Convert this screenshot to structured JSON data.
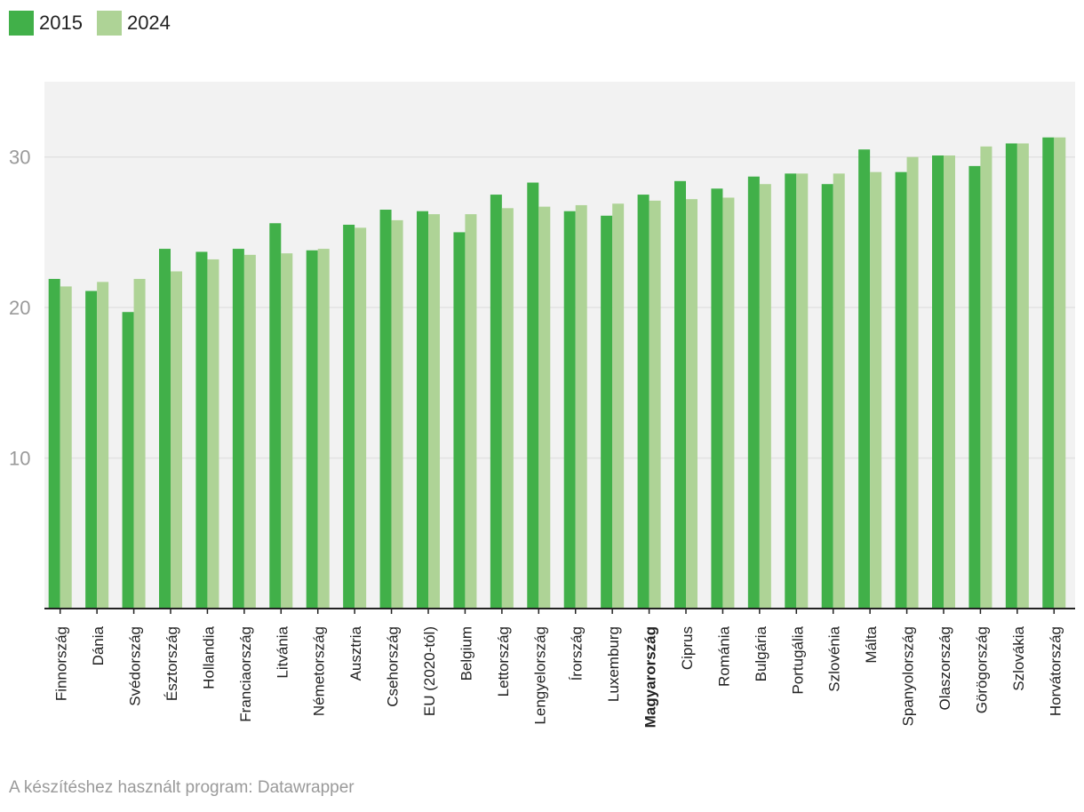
{
  "colors": {
    "s2015": "#41b049",
    "s2024": "#aed396",
    "plot_bg": "#f2f2f2",
    "grid": "#e2e2e2",
    "tick": "#9a9a9a",
    "axis": "#222222",
    "label": "#222222"
  },
  "legend": [
    {
      "name": "2015",
      "color": "#41b049"
    },
    {
      "name": "2024",
      "color": "#aed396"
    }
  ],
  "footer": "A készítéshez használt program: Datawrapper",
  "chart_data": {
    "type": "bar",
    "title": "",
    "xlabel": "",
    "ylabel": "",
    "ylim": [
      0,
      35
    ],
    "yticks": [
      10,
      20,
      30
    ],
    "highlight": "Magyarország",
    "categories": [
      "Finnország",
      "Dánia",
      "Svédország",
      "Észtország",
      "Hollandia",
      "Franciaország",
      "Litvánia",
      "Németország",
      "Ausztria",
      "Csehország",
      "EU (2020-tól)",
      "Belgium",
      "Lettország",
      "Lengyelország",
      "Írország",
      "Luxemburg",
      "Magyarország",
      "Ciprus",
      "Románia",
      "Bulgária",
      "Portugália",
      "Szlovénia",
      "Málta",
      "Spanyolország",
      "Olaszország",
      "Görögország",
      "Szlovákia",
      "Horvátország"
    ],
    "series": [
      {
        "name": "2015",
        "values": [
          21.9,
          21.1,
          19.7,
          23.9,
          23.7,
          23.9,
          25.6,
          23.8,
          25.5,
          26.5,
          26.4,
          25.0,
          27.5,
          28.3,
          26.4,
          26.1,
          27.5,
          28.4,
          27.9,
          28.7,
          28.9,
          28.2,
          30.5,
          29.0,
          30.1,
          29.4,
          30.9,
          31.3
        ]
      },
      {
        "name": "2024",
        "values": [
          21.4,
          21.7,
          21.9,
          22.4,
          23.2,
          23.5,
          23.6,
          23.9,
          25.3,
          25.8,
          26.2,
          26.2,
          26.6,
          26.7,
          26.8,
          26.9,
          27.1,
          27.2,
          27.3,
          28.2,
          28.9,
          28.9,
          29.0,
          30.0,
          30.1,
          30.7,
          30.9,
          31.3
        ]
      }
    ]
  }
}
